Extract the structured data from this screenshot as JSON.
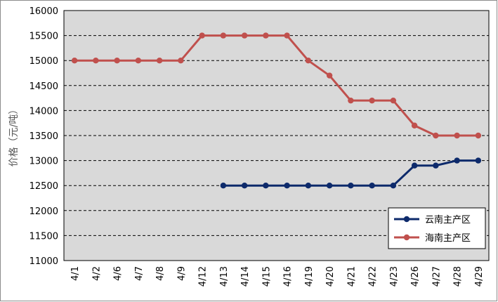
{
  "chart_data": {
    "type": "line",
    "title": "",
    "xlabel": "",
    "ylabel": "价格（元/吨）",
    "ylim": [
      11000,
      16000
    ],
    "ystep": 500,
    "grid": true,
    "legend_position": "bottom-right",
    "categories": [
      "4/1",
      "4/2",
      "4/6",
      "4/7",
      "4/8",
      "4/9",
      "4/12",
      "4/13",
      "4/14",
      "4/15",
      "4/16",
      "4/19",
      "4/20",
      "4/21",
      "4/22",
      "4/23",
      "4/26",
      "4/27",
      "4/28",
      "4/29"
    ],
    "yticks": [
      "16000",
      "15500",
      "15000",
      "14500",
      "14000",
      "13500",
      "13000",
      "12500",
      "12000",
      "11500",
      "11000"
    ],
    "series": [
      {
        "name": "云南主产区",
        "color": "#0d2a6b",
        "values": [
          null,
          null,
          null,
          null,
          null,
          null,
          null,
          12500,
          12500,
          12500,
          12500,
          12500,
          12500,
          12500,
          12500,
          12500,
          12900,
          12900,
          13000,
          13000
        ]
      },
      {
        "name": "海南主产区",
        "color": "#c0504d",
        "values": [
          15000,
          15000,
          15000,
          15000,
          15000,
          15000,
          15500,
          15500,
          15500,
          15500,
          15500,
          15000,
          14700,
          14200,
          14200,
          14200,
          13700,
          13500,
          13500,
          13500
        ]
      }
    ]
  }
}
